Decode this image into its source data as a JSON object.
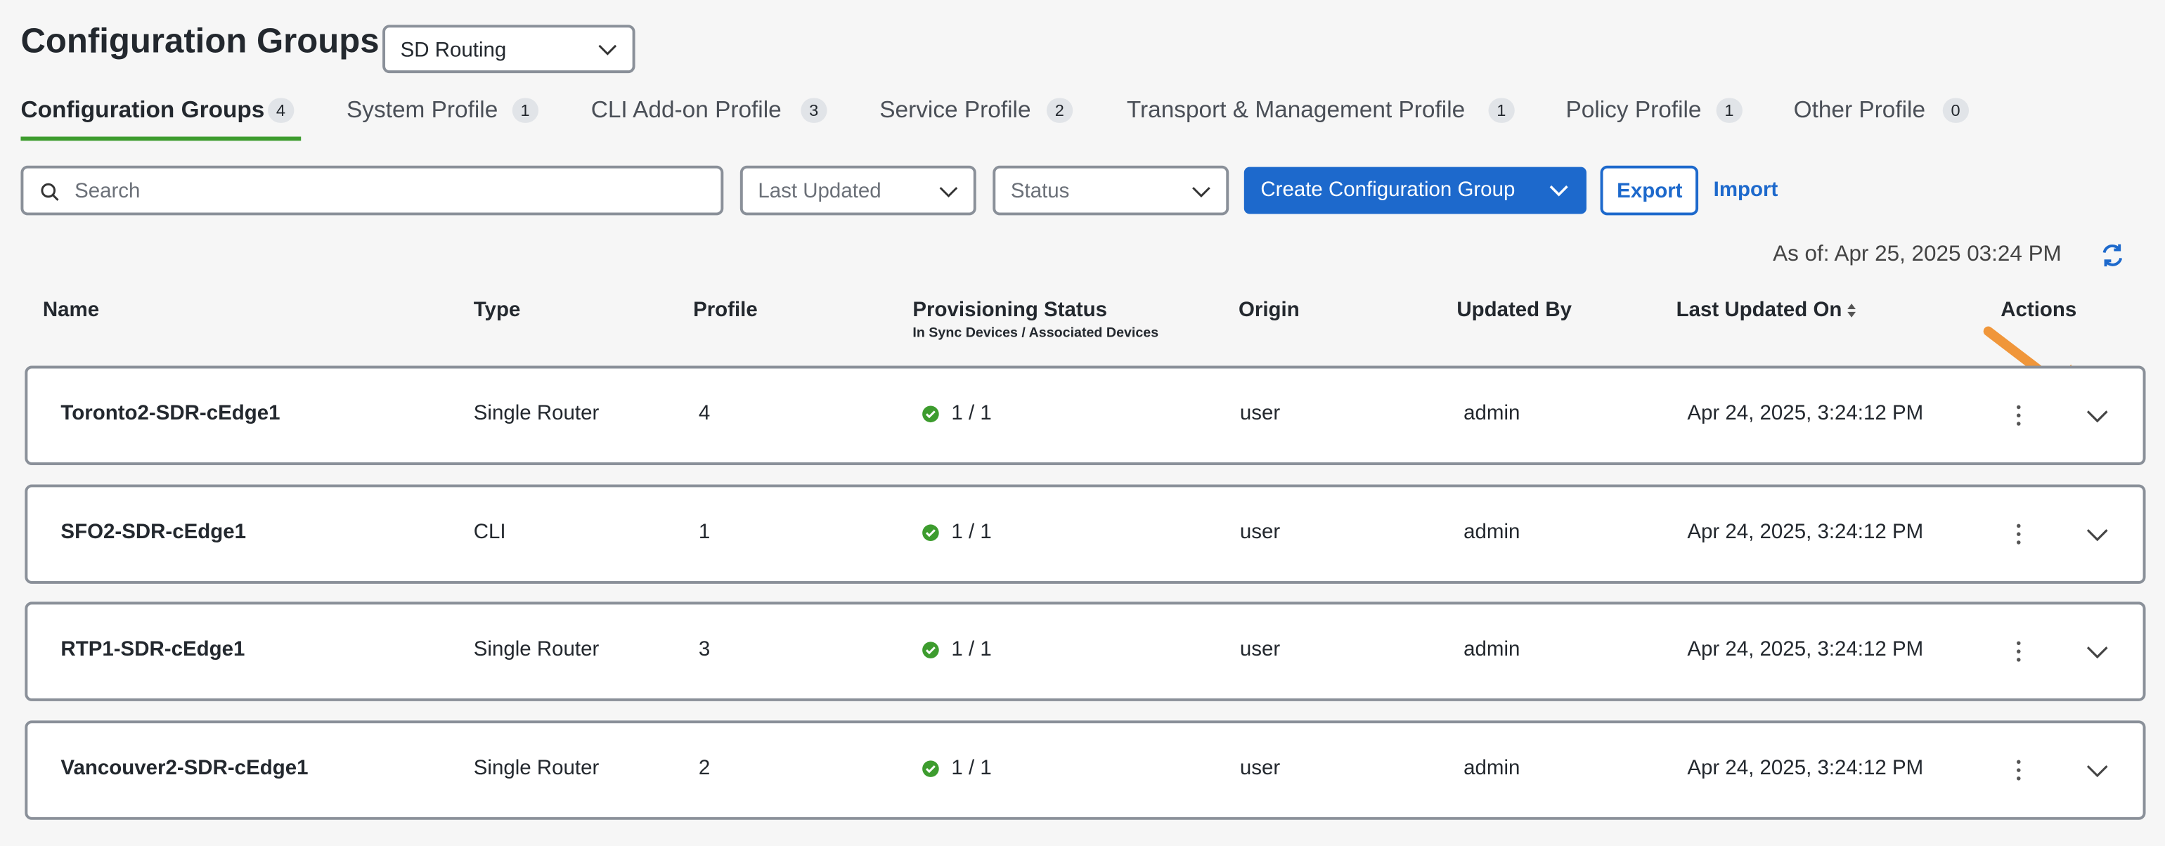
{
  "header": {
    "title": "Configuration Groups",
    "dropdown": "SD Routing"
  },
  "tabs": [
    {
      "label": "Configuration Groups",
      "count": "4"
    },
    {
      "label": "System Profile",
      "count": "1"
    },
    {
      "label": "CLI Add-on Profile",
      "count": "3"
    },
    {
      "label": "Service Profile",
      "count": "2"
    },
    {
      "label": "Transport & Management Profile",
      "count": "1"
    },
    {
      "label": "Policy Profile",
      "count": "1"
    },
    {
      "label": "Other Profile",
      "count": "0"
    }
  ],
  "toolbar": {
    "search": "Search",
    "filters": [
      "Last Updated",
      "Status"
    ],
    "create": "Create Configuration Group",
    "export": "Export",
    "import": "Import"
  },
  "as_of": "As of: Apr 25, 2025 03:24 PM",
  "table": {
    "columns": [
      "Name",
      "Type",
      "Profile",
      "Provisioning Status",
      "Origin",
      "Updated By",
      "Last Updated On",
      "Actions"
    ],
    "status_subtitle": "In Sync Devices / Associated Devices",
    "rows": [
      [
        "Toronto2-SDR-cEdge1",
        "Single Router",
        "4",
        "1 / 1",
        "user",
        "admin",
        "Apr 24, 2025, 3:24:12 PM"
      ],
      [
        "SFO2-SDR-cEdge1",
        "CLI",
        "1",
        "1 / 1",
        "user",
        "admin",
        "Apr 24, 2025, 3:24:12 PM"
      ],
      [
        "RTP1-SDR-cEdge1",
        "Single Router",
        "3",
        "1 / 1",
        "user",
        "admin",
        "Apr 24, 2025, 3:24:12 PM"
      ],
      [
        "Vancouver2-SDR-cEdge1",
        "Single Router",
        "2",
        "1 / 1",
        "user",
        "admin",
        "Apr 24, 2025, 3:24:12 PM"
      ]
    ]
  }
}
